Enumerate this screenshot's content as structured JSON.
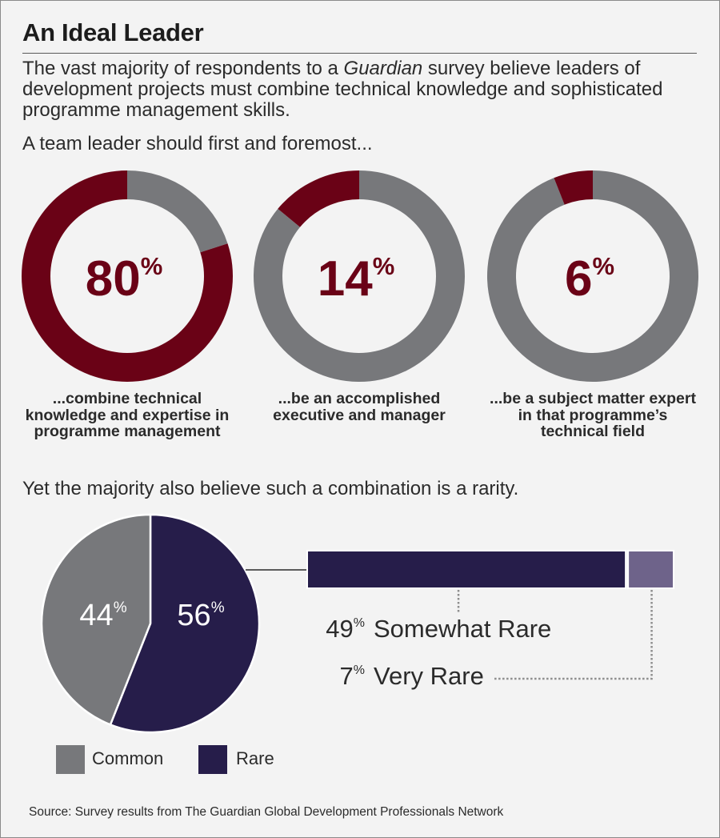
{
  "header": {
    "title": "An Ideal Leader",
    "intro_before": "The vast majority of respondents to a ",
    "intro_italic": "Guardian",
    "intro_after": " survey believe leaders of development projects must combine technical knowledge and sophisticated programme management skills.",
    "lead": "A team leader should first and foremost..."
  },
  "rarity_heading": "Yet the majority also believe such a combination is a rarity.",
  "source": "Source: Survey results from The Guardian Global Development Professionals Network",
  "colors": {
    "maroon": "#6a0216",
    "gray": "#77787b",
    "navy": "#261d4a",
    "purple": "#6e638a",
    "background": "#f3f3f3"
  },
  "chart_data": [
    {
      "type": "pie",
      "title": "A team leader should first and foremost...",
      "donuts": [
        {
          "value": 80,
          "label": "80",
          "unit": "%",
          "caption": "...combine technical knowledge and expertise in programme management"
        },
        {
          "value": 14,
          "label": "14",
          "unit": "%",
          "caption": "...be an accomplished executive and manager"
        },
        {
          "value": 6,
          "label": "6",
          "unit": "%",
          "caption": "...be a subject matter expert in that programme’s technical field"
        }
      ]
    },
    {
      "type": "pie",
      "title": "Yet the majority also believe such a combination is a rarity.",
      "categories": [
        "Common",
        "Rare"
      ],
      "values": [
        44,
        56
      ],
      "labels": [
        "44",
        "56"
      ],
      "unit": "%",
      "legend": [
        "Common",
        "Rare"
      ]
    },
    {
      "type": "bar",
      "orientation": "horizontal-stacked",
      "categories": [
        "Somewhat Rare",
        "Very Rare"
      ],
      "values": [
        49,
        7
      ],
      "labels": [
        "49",
        "7"
      ],
      "unit": "%"
    }
  ]
}
